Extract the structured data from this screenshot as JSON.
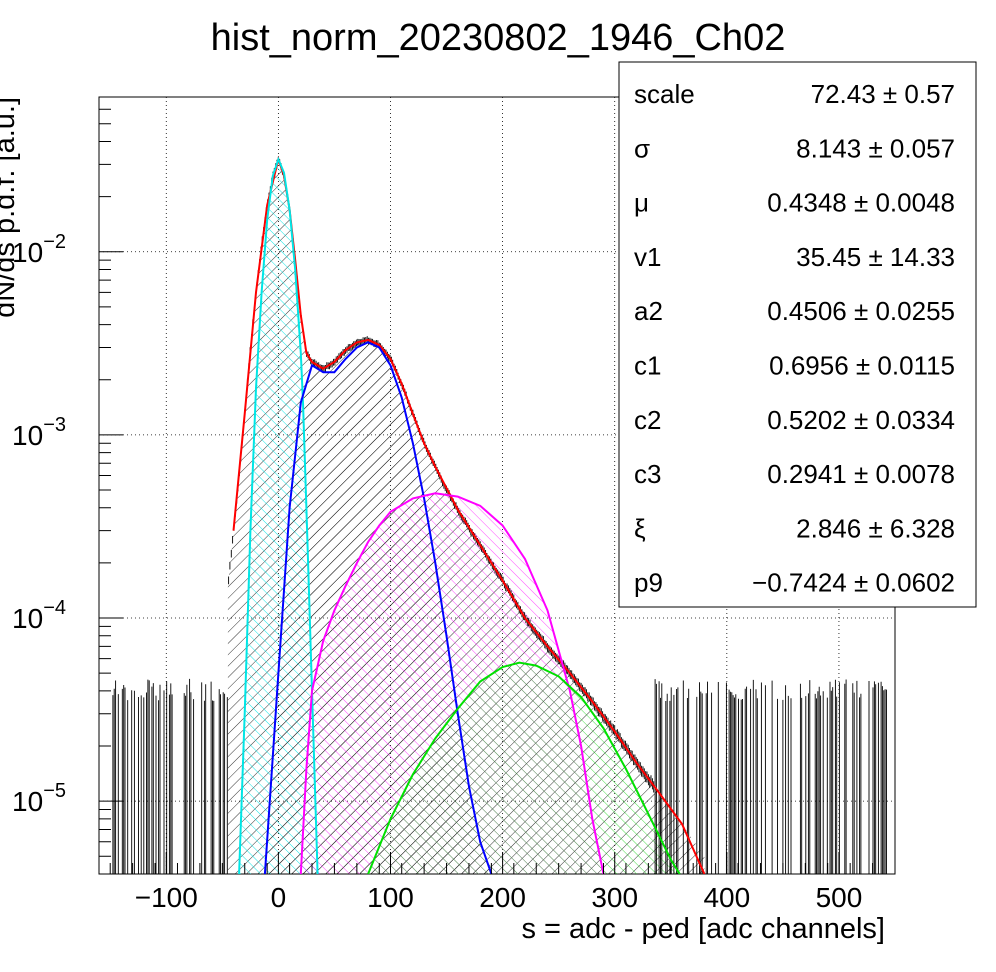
{
  "chart_data": {
    "type": "line",
    "title": "hist_norm_20230802_1946_Ch02",
    "xlabel": "s = adc - ped [adc channels]",
    "ylabel": "dN/ds p.d.f. [a.u.]",
    "xlim": [
      -160,
      550
    ],
    "ylim": [
      4e-06,
      0.07
    ],
    "y_scale": "log",
    "grid": true,
    "x_ticks": [
      {
        "value": -100,
        "label": "−100"
      },
      {
        "value": 0,
        "label": "0"
      },
      {
        "value": 100,
        "label": "100"
      },
      {
        "value": 200,
        "label": "200"
      },
      {
        "value": 300,
        "label": "300"
      },
      {
        "value": 400,
        "label": "400"
      },
      {
        "value": 500,
        "label": "500"
      }
    ],
    "y_ticks": [
      {
        "value": 1e-05,
        "base": "10",
        "exp": "−5"
      },
      {
        "value": 0.0001,
        "base": "10",
        "exp": "−4"
      },
      {
        "value": 0.001,
        "base": "10",
        "exp": "−3"
      },
      {
        "value": 0.01,
        "base": "10",
        "exp": "−2"
      }
    ],
    "series": [
      {
        "color": "#000000",
        "hatch": "forward",
        "x": [
          -45,
          -40,
          -35,
          -30,
          -25,
          -20,
          -15,
          -10,
          -5,
          0,
          5,
          10,
          15,
          20,
          25,
          30,
          40,
          50,
          60,
          70,
          80,
          90,
          100,
          110,
          120,
          130,
          140,
          150,
          160,
          170,
          180,
          190,
          200,
          220,
          240,
          260,
          280,
          300,
          320,
          340,
          360,
          380
        ],
        "y": [
          0.00015,
          0.0003,
          0.0006,
          0.0013,
          0.003,
          0.006,
          0.011,
          0.018,
          0.026,
          0.032,
          0.026,
          0.017,
          0.009,
          0.0045,
          0.0028,
          0.0025,
          0.0023,
          0.0025,
          0.0029,
          0.0032,
          0.0033,
          0.0031,
          0.0026,
          0.0019,
          0.0013,
          0.0009,
          0.00067,
          0.0005,
          0.00039,
          0.00031,
          0.00025,
          0.0002,
          0.00016,
          0.0001,
          7e-05,
          5e-05,
          3.5e-05,
          2.4e-05,
          1.6e-05,
          1.1e-05,
          7.5e-06,
          5e-06
        ]
      },
      {
        "color": "#ff0000",
        "x": [
          -40,
          -30,
          -20,
          -10,
          0,
          5,
          10,
          15,
          20,
          25,
          30,
          40,
          50,
          60,
          70,
          80,
          90,
          100,
          110,
          120,
          130,
          140,
          160,
          180,
          200,
          220,
          240,
          260,
          280,
          300,
          320,
          340,
          360,
          380
        ],
        "y": [
          0.0003,
          0.0013,
          0.006,
          0.018,
          0.032,
          0.026,
          0.017,
          0.009,
          0.0045,
          0.0028,
          0.0025,
          0.0023,
          0.0025,
          0.0029,
          0.0032,
          0.0033,
          0.0031,
          0.0026,
          0.0019,
          0.0013,
          0.0009,
          0.00067,
          0.00039,
          0.00025,
          0.00016,
          0.0001,
          7e-05,
          5e-05,
          3.5e-05,
          2.4e-05,
          1.6e-05,
          1.1e-05,
          7.5e-06,
          4e-06
        ]
      },
      {
        "color": "#00ffff",
        "hatch": "back",
        "x": [
          -35,
          -30,
          -25,
          -20,
          -15,
          -10,
          -5,
          0,
          5,
          10,
          15,
          20,
          22,
          25,
          30,
          35
        ],
        "y": [
          4e-06,
          3e-05,
          0.0003,
          0.0018,
          0.006,
          0.015,
          0.026,
          0.032,
          0.027,
          0.017,
          0.008,
          0.0028,
          0.0015,
          0.0004,
          4e-05,
          4e-06
        ]
      },
      {
        "color": "#0000ff",
        "hatch": "forward",
        "x": [
          -12,
          0,
          10,
          20,
          30,
          40,
          50,
          60,
          70,
          80,
          90,
          100,
          110,
          120,
          130,
          140,
          150,
          160,
          170,
          180,
          190
        ],
        "y": [
          4e-06,
          5e-05,
          0.0004,
          0.0015,
          0.0024,
          0.0022,
          0.0022,
          0.0026,
          0.003,
          0.0032,
          0.003,
          0.0024,
          0.0016,
          0.0009,
          0.00045,
          0.0002,
          8e-05,
          3e-05,
          1.2e-05,
          6e-06,
          4e-06
        ]
      },
      {
        "color": "#ff00ff",
        "hatch": "back",
        "x": [
          20,
          25,
          30,
          40,
          50,
          60,
          70,
          80,
          90,
          100,
          120,
          140,
          160,
          180,
          200,
          220,
          240,
          260,
          270,
          280,
          290
        ],
        "y": [
          4e-06,
          1.5e-05,
          4e-05,
          7.5e-05,
          0.00011,
          0.00015,
          0.0002,
          0.00026,
          0.00032,
          0.00038,
          0.00045,
          0.00048,
          0.00046,
          0.00041,
          0.00032,
          0.00021,
          0.00011,
          4e-05,
          2e-05,
          8e-06,
          4e-06
        ]
      },
      {
        "color": "#00ff00",
        "hatch": "back",
        "x": [
          80,
          100,
          120,
          140,
          160,
          180,
          200,
          215,
          230,
          250,
          270,
          290,
          310,
          330,
          350,
          358
        ],
        "y": [
          4e-06,
          8e-06,
          1.4e-05,
          2.2e-05,
          3.2e-05,
          4.5e-05,
          5.4e-05,
          5.7e-05,
          5.5e-05,
          4.8e-05,
          3.7e-05,
          2.5e-05,
          1.5e-05,
          8.5e-06,
          4.8e-06,
          4e-06
        ]
      }
    ]
  },
  "stats": [
    {
      "name": "scale",
      "value": "72.43",
      "err": "0.57"
    },
    {
      "name": "σ",
      "value": "8.143",
      "err": "0.057"
    },
    {
      "name": "μ",
      "value": "0.4348",
      "err": "0.0048"
    },
    {
      "name": "v1",
      "value": "35.45",
      "err": "14.33"
    },
    {
      "name": "a2",
      "value": "0.4506",
      "err": "0.0255"
    },
    {
      "name": "c1",
      "value": "0.6956",
      "err": "0.0115"
    },
    {
      "name": "c2",
      "value": "0.5202",
      "err": "0.0334"
    },
    {
      "name": "c3",
      "value": "0.2941",
      "err": "0.0078"
    },
    {
      "name": "ξ",
      "value": "2.846",
      "err": "6.328"
    },
    {
      "name": "p9",
      "value": "−0.7424",
      "err": "0.0602"
    }
  ],
  "stats_pm": "±"
}
